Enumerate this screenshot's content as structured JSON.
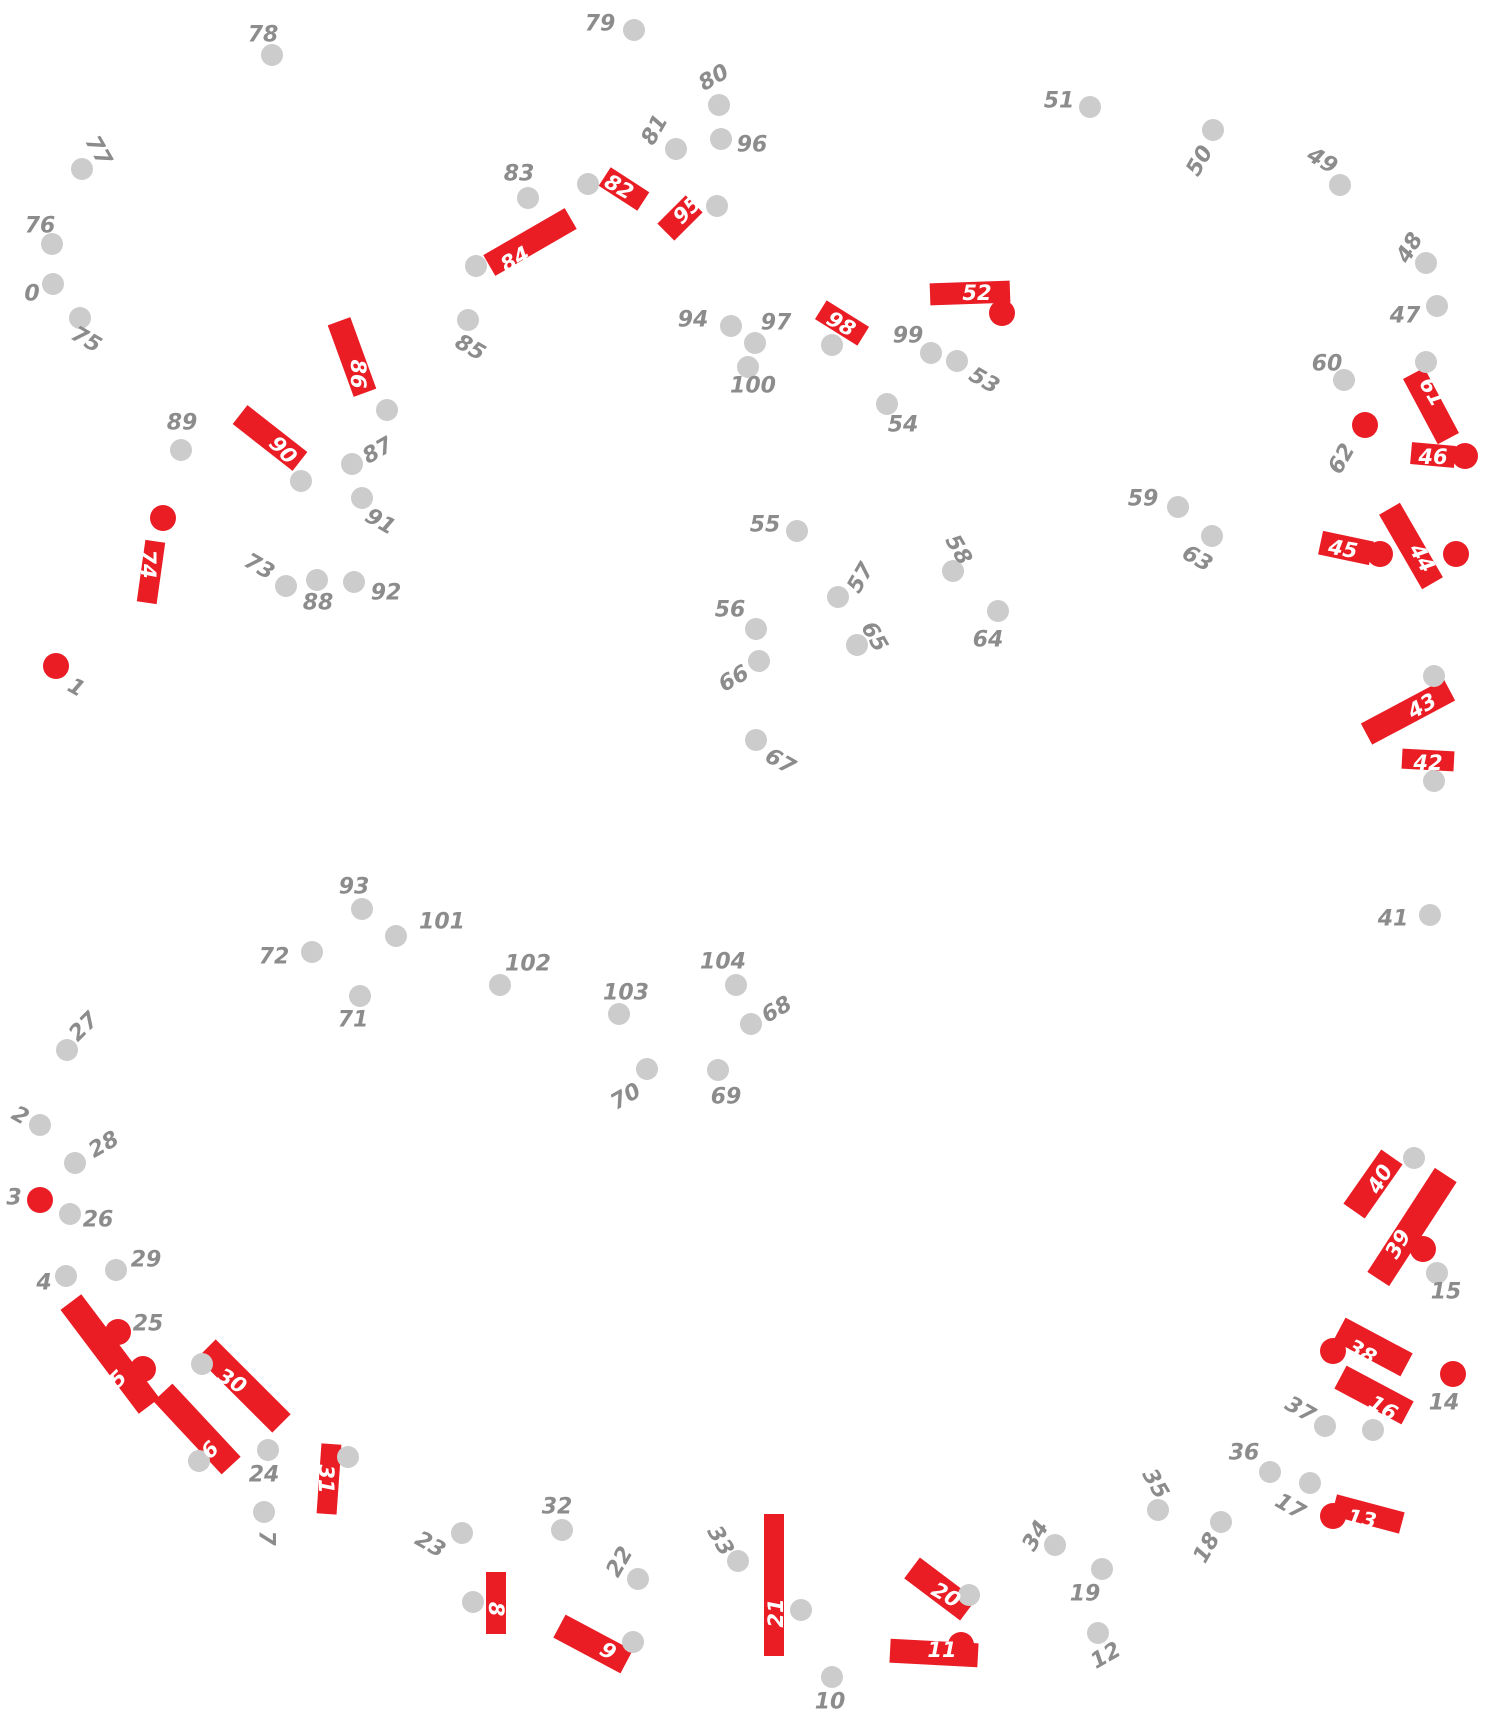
{
  "colors": {
    "background": "#ffffff",
    "dot": "#cccccc",
    "label": "#8c8c8c",
    "active": "#ea1c24",
    "active_text": "#ffffff"
  },
  "dots": [
    {
      "id": "0"
    },
    {
      "id": "1"
    },
    {
      "id": "2"
    },
    {
      "id": "3"
    },
    {
      "id": "4"
    },
    {
      "id": "5"
    },
    {
      "id": "6"
    },
    {
      "id": "7"
    },
    {
      "id": "8"
    },
    {
      "id": "9"
    },
    {
      "id": "10"
    },
    {
      "id": "11"
    },
    {
      "id": "12"
    },
    {
      "id": "13"
    },
    {
      "id": "14"
    },
    {
      "id": "15"
    },
    {
      "id": "16"
    },
    {
      "id": "17"
    },
    {
      "id": "18"
    },
    {
      "id": "19"
    },
    {
      "id": "20"
    },
    {
      "id": "21"
    },
    {
      "id": "22"
    },
    {
      "id": "23"
    },
    {
      "id": "24"
    },
    {
      "id": "25"
    },
    {
      "id": "26"
    },
    {
      "id": "27"
    },
    {
      "id": "28"
    },
    {
      "id": "29"
    },
    {
      "id": "30"
    },
    {
      "id": "31"
    },
    {
      "id": "32"
    },
    {
      "id": "33"
    },
    {
      "id": "34"
    },
    {
      "id": "35"
    },
    {
      "id": "36"
    },
    {
      "id": "37"
    },
    {
      "id": "38"
    },
    {
      "id": "39"
    },
    {
      "id": "40"
    },
    {
      "id": "41"
    },
    {
      "id": "42"
    },
    {
      "id": "43"
    },
    {
      "id": "44"
    },
    {
      "id": "45"
    },
    {
      "id": "46"
    },
    {
      "id": "47"
    },
    {
      "id": "48"
    },
    {
      "id": "49"
    },
    {
      "id": "50"
    },
    {
      "id": "51"
    },
    {
      "id": "52"
    },
    {
      "id": "53"
    },
    {
      "id": "54"
    },
    {
      "id": "55"
    },
    {
      "id": "56"
    },
    {
      "id": "57"
    },
    {
      "id": "58"
    },
    {
      "id": "59"
    },
    {
      "id": "60"
    },
    {
      "id": "61"
    },
    {
      "id": "62"
    },
    {
      "id": "63"
    },
    {
      "id": "64"
    },
    {
      "id": "65"
    },
    {
      "id": "66"
    },
    {
      "id": "67"
    },
    {
      "id": "68"
    },
    {
      "id": "69"
    },
    {
      "id": "70"
    },
    {
      "id": "71"
    },
    {
      "id": "72"
    },
    {
      "id": "73"
    },
    {
      "id": "74"
    },
    {
      "id": "75"
    },
    {
      "id": "76"
    },
    {
      "id": "77"
    },
    {
      "id": "78"
    },
    {
      "id": "79"
    },
    {
      "id": "80"
    },
    {
      "id": "81"
    },
    {
      "id": "82"
    },
    {
      "id": "83"
    },
    {
      "id": "84"
    },
    {
      "id": "85"
    },
    {
      "id": "86"
    },
    {
      "id": "87"
    },
    {
      "id": "88"
    },
    {
      "id": "89"
    },
    {
      "id": "90"
    },
    {
      "id": "91"
    },
    {
      "id": "92"
    },
    {
      "id": "93"
    },
    {
      "id": "94"
    },
    {
      "id": "95"
    },
    {
      "id": "96"
    },
    {
      "id": "97"
    },
    {
      "id": "98"
    },
    {
      "id": "99"
    },
    {
      "id": "100"
    },
    {
      "id": "101"
    },
    {
      "id": "102"
    },
    {
      "id": "103"
    },
    {
      "id": "104"
    }
  ],
  "active_dots": [
    "1",
    "3",
    "5",
    "11",
    "13",
    "14",
    "25",
    "38",
    "39",
    "44",
    "45",
    "46",
    "52",
    "62",
    "74"
  ],
  "tags": [
    "5",
    "6",
    "8",
    "9",
    "11",
    "13",
    "16",
    "20",
    "21",
    "30",
    "31",
    "38",
    "39",
    "40",
    "42",
    "43",
    "44",
    "45",
    "46",
    "52",
    "61",
    "74",
    "82",
    "84",
    "86",
    "90",
    "95",
    "98"
  ]
}
